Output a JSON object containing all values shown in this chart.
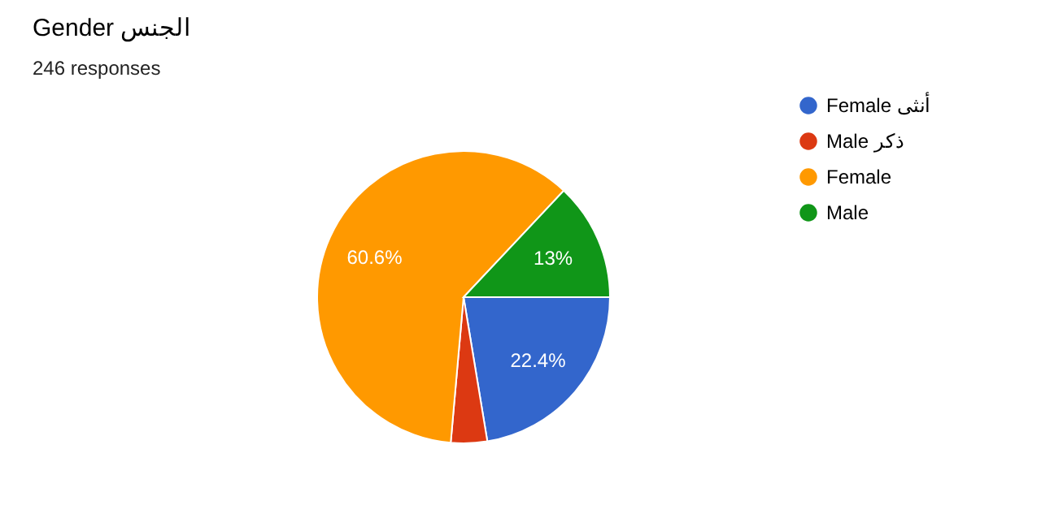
{
  "chart_data": {
    "type": "pie",
    "title": "Gender الجنس",
    "subtitle": "246 responses",
    "categories": [
      "Female أنثى",
      "Male ذكر",
      "Female",
      "Male"
    ],
    "values": [
      22.4,
      4,
      60.6,
      13
    ],
    "colors": [
      "#3366cc",
      "#dc3912",
      "#ff9900",
      "#109618"
    ],
    "value_labels": [
      "22.4%",
      null,
      "60.6%",
      "13%"
    ],
    "legend": "right"
  }
}
